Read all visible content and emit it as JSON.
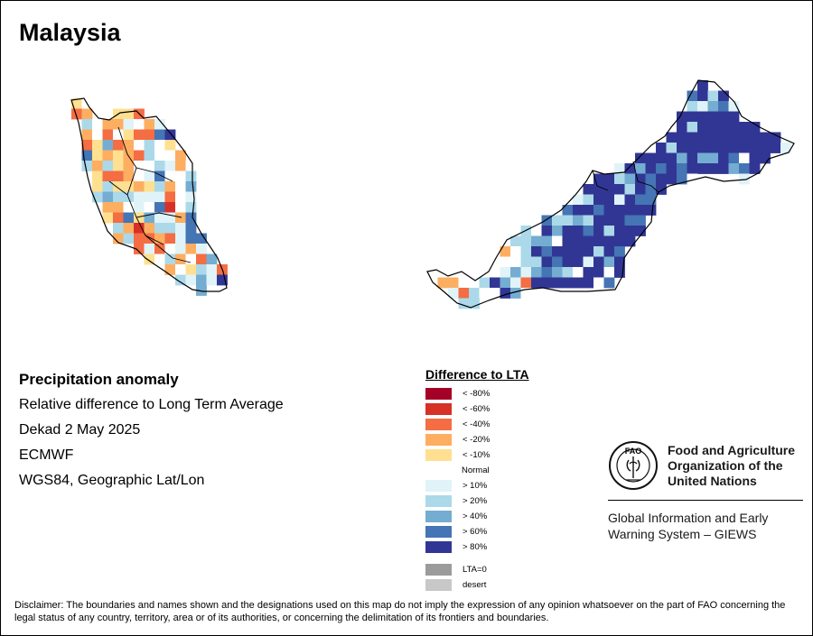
{
  "title": "Malaysia",
  "info": {
    "heading": "Precipitation anomaly",
    "lines": [
      "Relative difference to Long Term Average",
      "Dekad 2 May 2025",
      "ECMWF",
      "WGS84, Geographic Lat/Lon"
    ]
  },
  "legend": {
    "title": "Difference to LTA",
    "items": [
      {
        "label": "< -80%",
        "color": "#a50026"
      },
      {
        "label": "< -60%",
        "color": "#d73027"
      },
      {
        "label": "< -40%",
        "color": "#f46d43"
      },
      {
        "label": "< -20%",
        "color": "#fdae61"
      },
      {
        "label": "< -10%",
        "color": "#fee090"
      },
      {
        "label": "Normal",
        "color": "#ffffff"
      },
      {
        "label": "> 10%",
        "color": "#e0f3f8"
      },
      {
        "label": "> 20%",
        "color": "#abd9e9"
      },
      {
        "label": "> 40%",
        "color": "#74add1"
      },
      {
        "label": "> 60%",
        "color": "#4575b4"
      },
      {
        "label": "> 80%",
        "color": "#313695"
      }
    ],
    "extra": [
      {
        "label": "LTA=0",
        "color": "#9b9b9b"
      },
      {
        "label": "desert",
        "color": "#c8c8c8"
      }
    ]
  },
  "fao": {
    "logo_letters": "FAO",
    "name_lines": [
      "Food and Agriculture",
      "Organization of the",
      "United Nations"
    ],
    "giews_lines": [
      "Global Information and Early",
      "Warning System – GIEWS"
    ],
    "logo_icon": "fao-wheat-emblem"
  },
  "disclaimer": "Disclaimer: The boundaries and names shown and the designations used on this map do not imply the expression of any opinion whatsoever on the part of FAO concerning the legal status of any country, territory, area or of its authorities, or concerning the delimitation of its frontiers and boundaries."
}
